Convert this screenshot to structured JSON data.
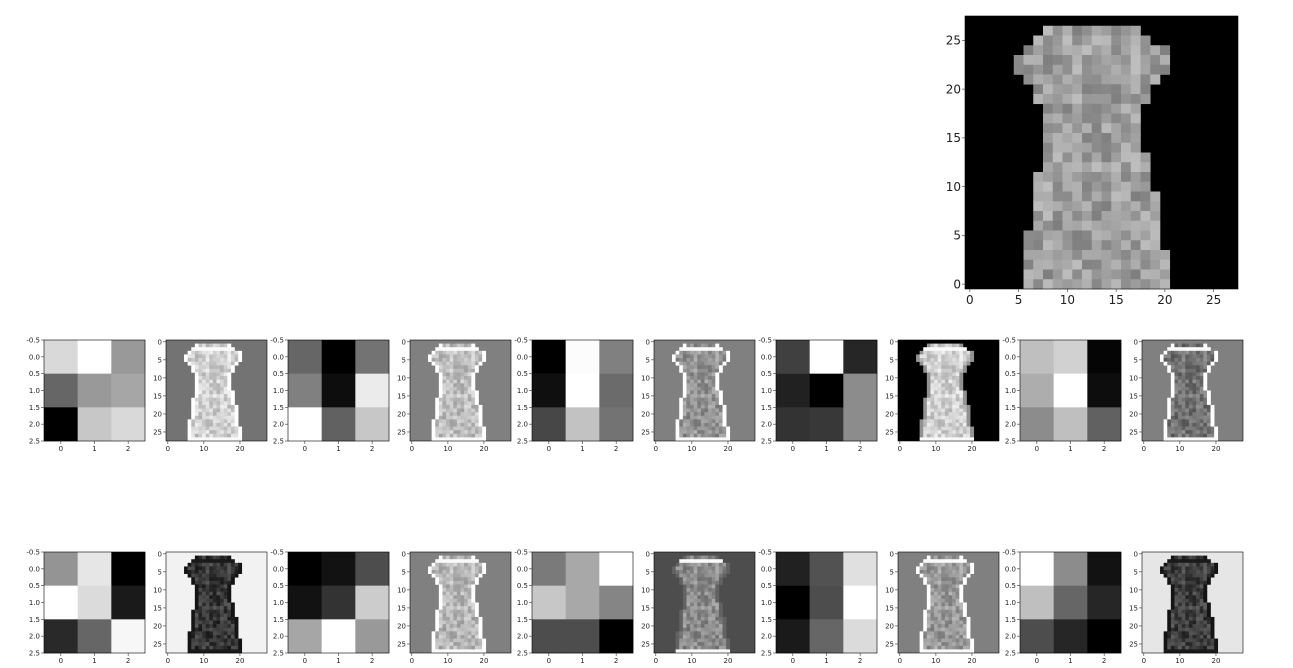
{
  "figure": {
    "description_free": true
  },
  "chart_data": [
    {
      "type": "heatmap",
      "role": "input-image",
      "colormap": "gray",
      "xticks": [
        "0",
        "5",
        "10",
        "15",
        "20",
        "25"
      ],
      "yticks": [
        "0",
        "5",
        "10",
        "15",
        "20",
        "25"
      ],
      "xlim": [
        -0.5,
        27.5
      ],
      "ylim": [
        27.5,
        -0.5
      ]
    },
    {
      "type": "heatmap",
      "role": "filter-grid",
      "colormap": "gray",
      "rows": [
        {
          "panels": [
            {
              "kind": "filter",
              "values": [
                [
                  0.85,
                  1.0,
                  0.6
                ],
                [
                  0.4,
                  0.6,
                  0.65
                ],
                [
                  0.0,
                  0.78,
                  0.85
                ]
              ]
            },
            {
              "kind": "feature",
              "background": 0.45,
              "dress": 0.82
            },
            {
              "kind": "filter",
              "values": [
                [
                  0.4,
                  0.0,
                  0.45
                ],
                [
                  0.5,
                  0.05,
                  0.92
                ],
                [
                  1.0,
                  0.38,
                  0.78
                ]
              ]
            },
            {
              "kind": "feature",
              "background": 0.5,
              "dress": 0.75
            },
            {
              "kind": "filter",
              "values": [
                [
                  0.0,
                  0.99,
                  0.5
                ],
                [
                  0.06,
                  1.0,
                  0.42
                ],
                [
                  0.28,
                  0.76,
                  0.45
                ]
              ]
            },
            {
              "kind": "feature",
              "background": 0.5,
              "dress": 0.58
            },
            {
              "kind": "filter",
              "values": [
                [
                  0.25,
                  1.0,
                  0.15
                ],
                [
                  0.13,
                  0.0,
                  0.55
                ],
                [
                  0.2,
                  0.22,
                  0.55
                ]
              ]
            },
            {
              "kind": "feature",
              "background": 0.0,
              "dress": 0.82
            },
            {
              "kind": "filter",
              "values": [
                [
                  0.75,
                  0.82,
                  0.02
                ],
                [
                  0.68,
                  1.0,
                  0.05
                ],
                [
                  0.55,
                  0.75,
                  0.38
                ]
              ]
            },
            {
              "kind": "feature",
              "background": 0.5,
              "dress": 0.45
            }
          ]
        },
        {
          "panels": [
            {
              "kind": "filter",
              "values": [
                [
                  0.58,
                  0.9,
                  0.0
                ],
                [
                  1.0,
                  0.86,
                  0.1
                ],
                [
                  0.16,
                  0.4,
                  0.97
                ]
              ]
            },
            {
              "kind": "feature",
              "background": 0.95,
              "dress": 0.22
            },
            {
              "kind": "filter",
              "values": [
                [
                  0.0,
                  0.07,
                  0.3
                ],
                [
                  0.07,
                  0.2,
                  0.8
                ],
                [
                  0.65,
                  1.0,
                  0.6
                ]
              ]
            },
            {
              "kind": "feature",
              "background": 0.5,
              "dress": 0.72
            },
            {
              "kind": "filter",
              "values": [
                [
                  0.48,
                  0.66,
                  1.0
                ],
                [
                  0.78,
                  0.66,
                  0.52
                ],
                [
                  0.3,
                  0.3,
                  0.0
                ]
              ]
            },
            {
              "kind": "feature",
              "background": 0.3,
              "dress": 0.55
            },
            {
              "kind": "filter",
              "values": [
                [
                  0.13,
                  0.32,
                  0.88
                ],
                [
                  0.0,
                  0.3,
                  1.0
                ],
                [
                  0.1,
                  0.4,
                  0.86
                ]
              ]
            },
            {
              "kind": "feature",
              "background": 0.5,
              "dress": 0.6
            },
            {
              "kind": "filter",
              "values": [
                [
                  1.0,
                  0.55,
                  0.07
                ],
                [
                  0.75,
                  0.4,
                  0.15
                ],
                [
                  0.3,
                  0.15,
                  0.0
                ]
              ]
            },
            {
              "kind": "feature",
              "background": 0.9,
              "dress": 0.25
            }
          ]
        }
      ],
      "filter_xticks": [
        "0",
        "1",
        "2"
      ],
      "filter_yticks": [
        "-0.5",
        "0.0",
        "0.5",
        "1.0",
        "1.5",
        "2.0",
        "2.5"
      ],
      "feature_xticks": [
        "0",
        "10",
        "20"
      ],
      "feature_yticks": [
        "0",
        "5",
        "10",
        "15",
        "20",
        "25"
      ]
    }
  ]
}
